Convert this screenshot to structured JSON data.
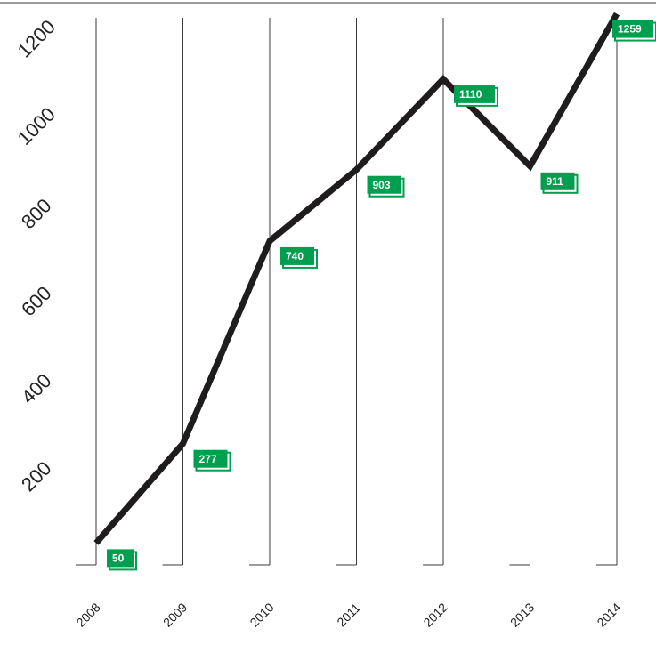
{
  "chart_data": {
    "type": "line",
    "title": "",
    "xlabel": "",
    "ylabel": "",
    "categories": [
      "2008",
      "2009",
      "2010",
      "2011",
      "2012",
      "2013",
      "2014"
    ],
    "series": [
      {
        "values": [
          50,
          277,
          740,
          903,
          1110,
          911,
          1259
        ]
      }
    ],
    "data_labels": [
      "50",
      "277",
      "740",
      "903",
      "1110",
      "911",
      "1259"
    ],
    "ylim": [
      0,
      1250
    ],
    "yticks": [
      "200",
      "400",
      "600",
      "800",
      "1000",
      "1200"
    ],
    "grid": "vertical",
    "legend": "none"
  },
  "colors": {
    "line": "#1e1c1d",
    "label_fill": "#009e4f",
    "label_shadow": "#009e4f",
    "gridline": "#3a3a3a"
  }
}
